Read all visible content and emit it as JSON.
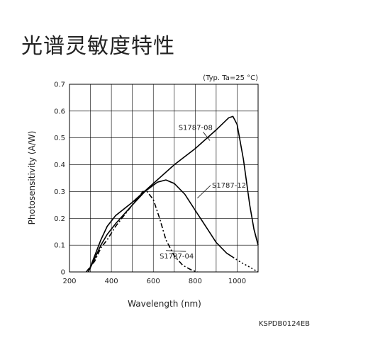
{
  "page": {
    "title": "光谱灵敏度特性",
    "code": "KSPDB0124EB"
  },
  "chart_data": {
    "type": "line",
    "title": "",
    "note": "(Typ. Ta=25 °C)",
    "xlabel": "Wavelength (nm)",
    "ylabel": "Photosensitivity (A/W)",
    "xlim": [
      200,
      1100
    ],
    "ylim": [
      0,
      0.7
    ],
    "xticks": [
      200,
      400,
      600,
      800,
      1000
    ],
    "yticks": [
      0,
      0.1,
      0.2,
      0.3,
      0.4,
      0.5,
      0.6,
      0.7
    ],
    "ytick_labels": [
      "0",
      "0.1",
      "0.2",
      "0.3",
      "0.4",
      "0.5",
      "0.6",
      "0.7"
    ],
    "grid": true,
    "legend": "none",
    "series": [
      {
        "name": "S1787-08",
        "color": "#000000",
        "dash": "solid",
        "x": [
          290,
          320,
          350,
          380,
          420,
          500,
          600,
          700,
          800,
          900,
          960,
          980,
          1000,
          1030,
          1060,
          1080,
          1100
        ],
        "y": [
          0.0,
          0.06,
          0.12,
          0.17,
          0.21,
          0.26,
          0.33,
          0.4,
          0.46,
          0.53,
          0.575,
          0.58,
          0.55,
          0.42,
          0.25,
          0.16,
          0.1
        ]
      },
      {
        "name": "S1787-12",
        "color": "#000000",
        "dash": "solid",
        "x": [
          290,
          320,
          350,
          380,
          420,
          500,
          560,
          620,
          660,
          700,
          750,
          800,
          850,
          900,
          950,
          980,
          1020,
          1060,
          1100
        ],
        "y": [
          0.0,
          0.05,
          0.1,
          0.14,
          0.18,
          0.25,
          0.3,
          0.335,
          0.343,
          0.33,
          0.29,
          0.23,
          0.17,
          0.11,
          0.07,
          0.055,
          0.035,
          0.018,
          0.0
        ]
      },
      {
        "name": "S1787-04",
        "color": "#000000",
        "dash": "dash-dot",
        "x": [
          280,
          320,
          350,
          380,
          420,
          470,
          510,
          550,
          570,
          600,
          630,
          660,
          700,
          740,
          780,
          810
        ],
        "y": [
          0.0,
          0.04,
          0.09,
          0.12,
          0.17,
          0.22,
          0.26,
          0.3,
          0.3,
          0.27,
          0.2,
          0.12,
          0.06,
          0.025,
          0.008,
          0.0
        ]
      }
    ],
    "annotations": [
      {
        "text": "S1787-08",
        "x": 720,
        "y": 0.53,
        "arrow_to": [
          870,
          0.49
        ]
      },
      {
        "text": "S1787-12",
        "x": 880,
        "y": 0.315,
        "arrow_to": [
          810,
          0.275
        ]
      },
      {
        "text": "S1787-04",
        "x": 630,
        "y": 0.05,
        "arrow_to": [
          660,
          0.08
        ]
      }
    ]
  }
}
